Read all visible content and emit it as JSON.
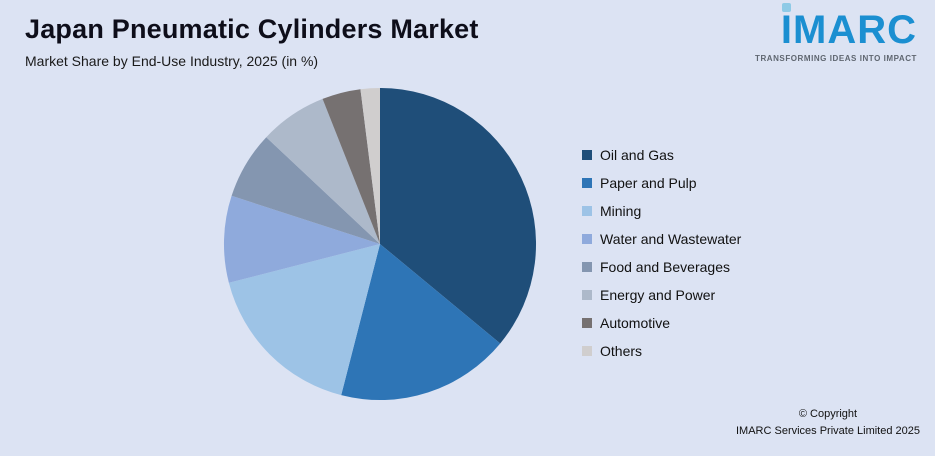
{
  "header": {
    "title": "Japan Pneumatic Cylinders Market",
    "subtitle": "Market Share by End-Use Industry, 2025 (in %)"
  },
  "logo": {
    "brand": "IMARC",
    "tagline": "TRANSFORMING IDEAS INTO IMPACT",
    "brand_color": "#1b8fd1",
    "dot_color": "#8ecae6"
  },
  "footer": {
    "line1": "© Copyright",
    "line2": "IMARC Services Private Limited 2025"
  },
  "chart_data": {
    "type": "pie",
    "title": "Japan Pneumatic Cylinders Market",
    "subtitle": "Market Share by End-Use Industry, 2025 (in %)",
    "unit": "%",
    "legend_position": "right",
    "start_angle_deg": 0,
    "direction": "clockwise",
    "slices": [
      {
        "label": "Oil and Gas",
        "value": 36,
        "color": "#1f4e79"
      },
      {
        "label": "Paper and Pulp",
        "value": 18,
        "color": "#2e75b6"
      },
      {
        "label": "Mining",
        "value": 17,
        "color": "#9dc3e6"
      },
      {
        "label": "Water and Wastewater",
        "value": 9,
        "color": "#8faadc"
      },
      {
        "label": "Food and Beverages",
        "value": 7,
        "color": "#8496b0"
      },
      {
        "label": "Energy and Power",
        "value": 7,
        "color": "#adb9ca"
      },
      {
        "label": "Automotive",
        "value": 4,
        "color": "#767171"
      },
      {
        "label": "Others",
        "value": 2,
        "color": "#d0cece"
      }
    ],
    "background_color": "#dce3f3"
  }
}
